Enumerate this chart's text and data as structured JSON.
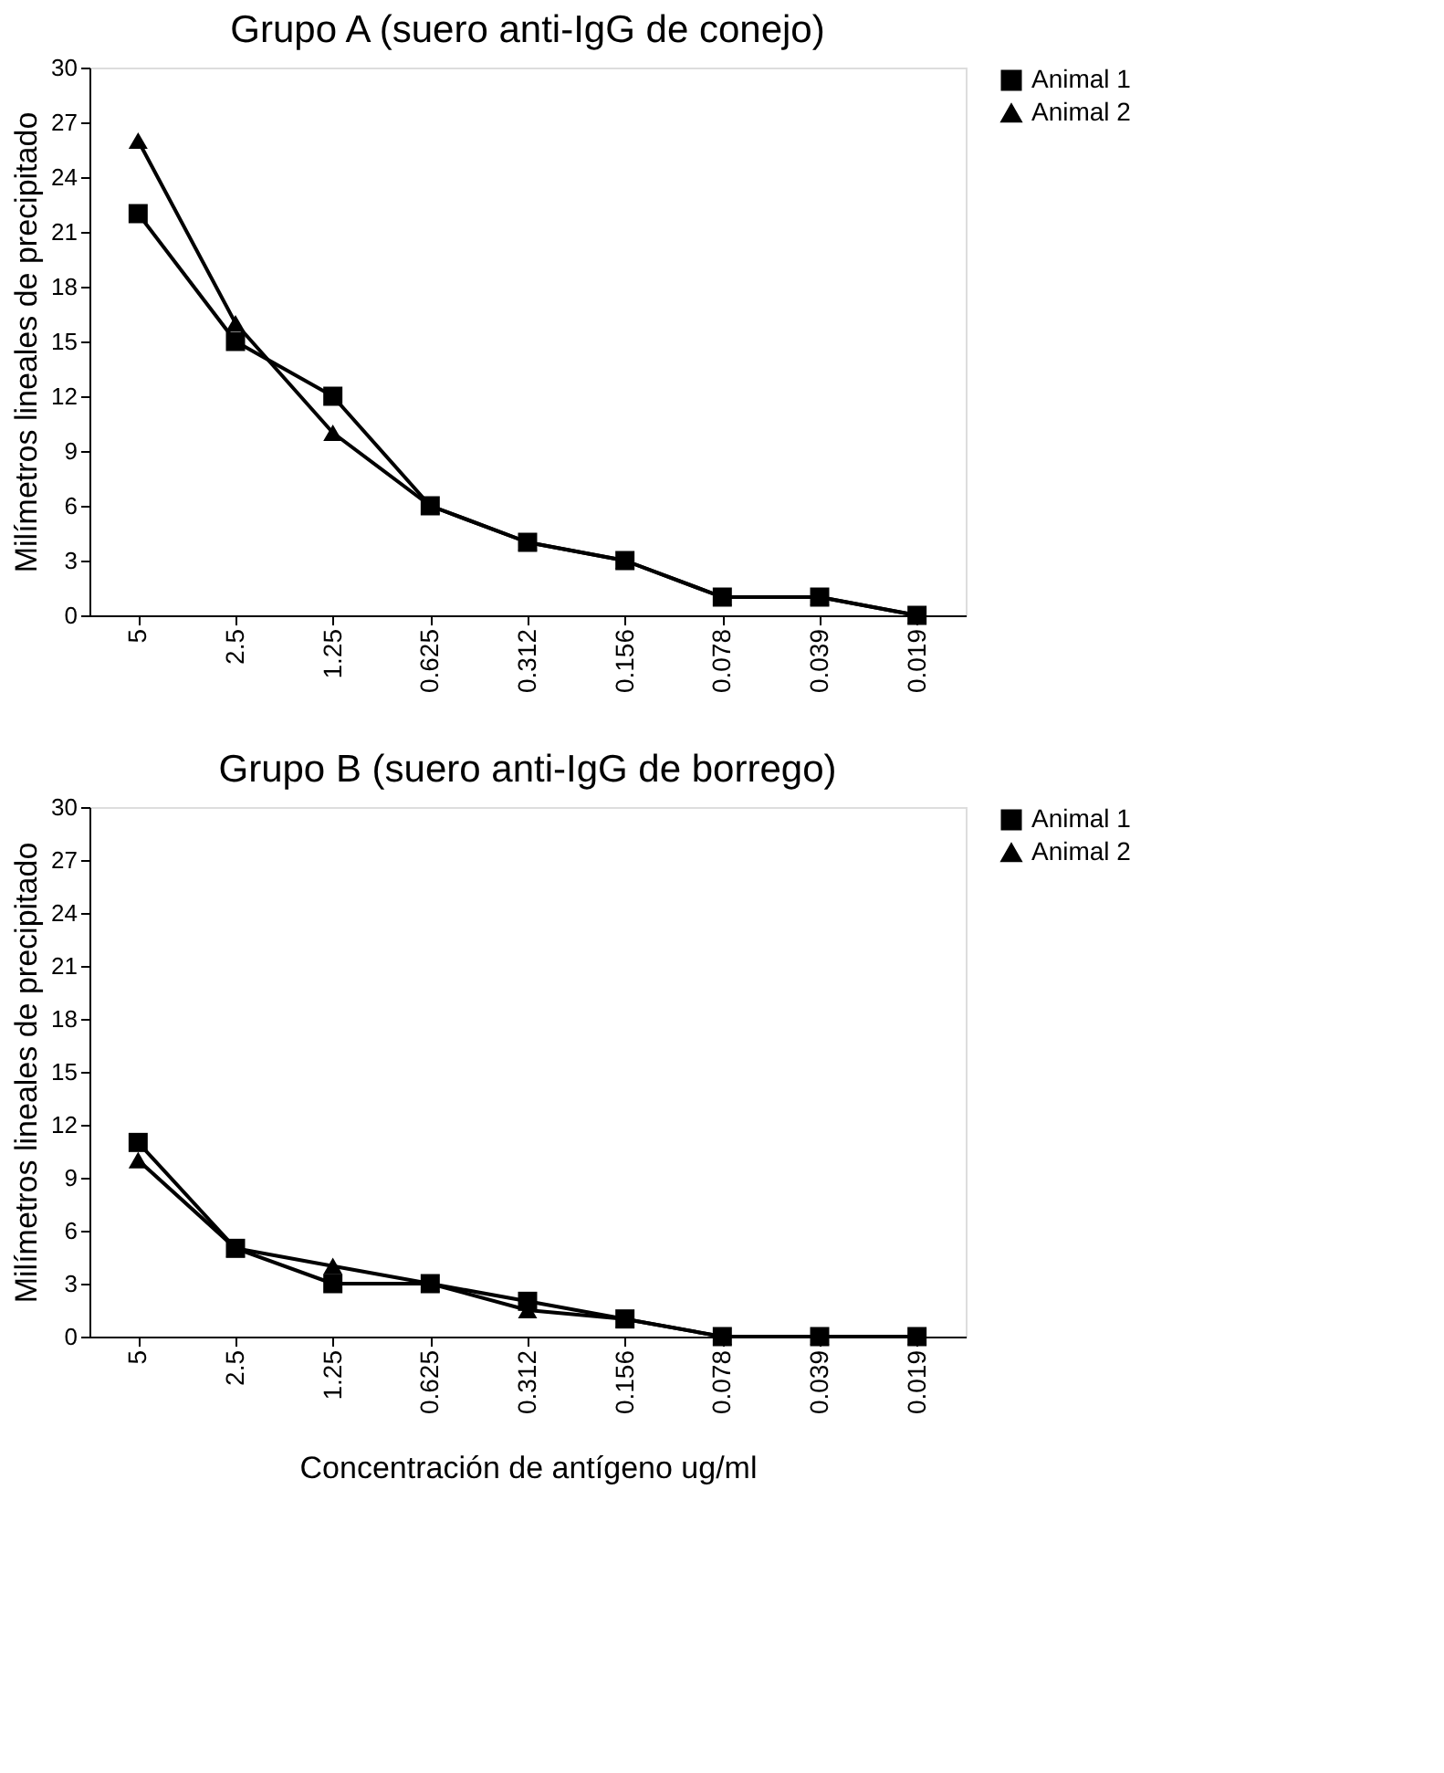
{
  "chart_data": [
    {
      "type": "line",
      "title": "Grupo A (suero anti-IgG de conejo)",
      "ylabel": "Milímetros lineales de precipitado",
      "categories": [
        "5",
        "2.5",
        "1.25",
        "0.625",
        "0.312",
        "0.156",
        "0.078",
        "0.039",
        "0.019"
      ],
      "ylim": [
        0,
        30
      ],
      "yticks": [
        0,
        3,
        6,
        9,
        12,
        15,
        18,
        21,
        24,
        27,
        30
      ],
      "grid": false,
      "legend": "right",
      "series": [
        {
          "name": "Animal 1",
          "color": "#000000",
          "marker": "square",
          "values": [
            22,
            15,
            12,
            6,
            4,
            3,
            1,
            1,
            0
          ]
        },
        {
          "name": "Animal 2",
          "color": "#000000",
          "marker": "triangle",
          "values": [
            26,
            16,
            10,
            6,
            4,
            3,
            1,
            1,
            0
          ]
        }
      ]
    },
    {
      "type": "line",
      "title": "Grupo B (suero anti-IgG de borrego)",
      "ylabel": "Milímetros lineales de precipitado",
      "xlabel": "Concentración de antígeno ug/ml",
      "categories": [
        "5",
        "2.5",
        "1.25",
        "0.625",
        "0.312",
        "0.156",
        "0.078",
        "0.039",
        "0.019"
      ],
      "ylim": [
        0,
        30
      ],
      "yticks": [
        0,
        3,
        6,
        9,
        12,
        15,
        18,
        21,
        24,
        27,
        30
      ],
      "grid": false,
      "legend": "right",
      "series": [
        {
          "name": "Animal 1",
          "color": "#000000",
          "marker": "square",
          "values": [
            11,
            5,
            3,
            3,
            2,
            1,
            0,
            0,
            0
          ]
        },
        {
          "name": "Animal 2",
          "color": "#000000",
          "marker": "triangle",
          "values": [
            10,
            5,
            4,
            3,
            1.5,
            1,
            0,
            0,
            0
          ]
        }
      ]
    }
  ]
}
